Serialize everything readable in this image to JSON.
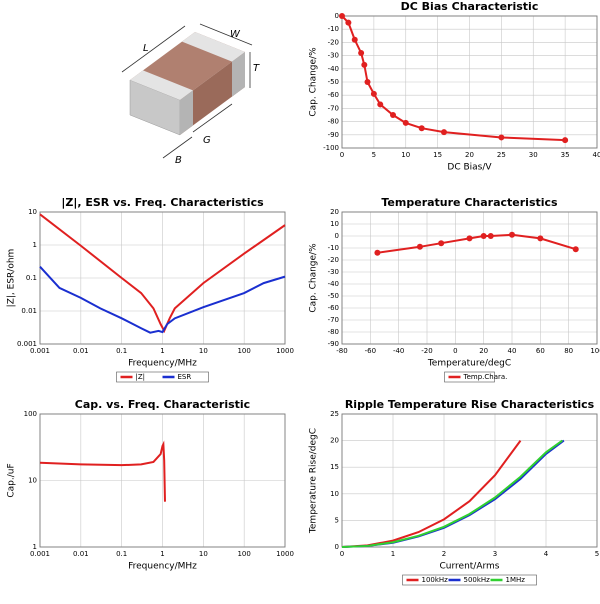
{
  "illustration": {
    "length_label": "L",
    "width_label": "W",
    "thickness_label": "T",
    "band_label": "B",
    "gap_label": "G"
  },
  "chart_data": [
    {
      "type": "line",
      "title": "DC Bias Characteristic",
      "x_label": "DC Bias/V",
      "y_label": "Cap. Change/%",
      "xlim": [
        0,
        40
      ],
      "xticks": [
        0,
        5,
        10,
        15,
        20,
        25,
        30,
        35,
        40
      ],
      "ylim": [
        -100,
        0
      ],
      "yticks": [
        0,
        -10,
        -20,
        -30,
        -40,
        -50,
        -60,
        -70,
        -80,
        -90,
        -100
      ],
      "grid": true,
      "markers": true,
      "series": [
        {
          "color": "#e02020",
          "x": [
            0,
            1,
            2,
            3,
            3.5,
            4,
            5,
            6,
            8,
            10,
            12.5,
            16,
            25,
            35
          ],
          "values": [
            0,
            -5,
            -18,
            -28,
            -37,
            -50,
            -59,
            -67,
            -75,
            -81,
            -85,
            -88,
            -92,
            -94
          ]
        }
      ]
    },
    {
      "type": "line",
      "title": "|Z|, ESR vs. Freq. Characteristics",
      "x_label": "Frequency/MHz",
      "y_label": "|Z|, ESR/ohm",
      "xscale": "log",
      "yscale": "log",
      "xlim": [
        0.001,
        1000
      ],
      "xticks": [
        0.001,
        0.01,
        0.1,
        1,
        10,
        100,
        1000
      ],
      "ylim": [
        0.001,
        10
      ],
      "yticks": [
        0.001,
        0.01,
        0.1,
        1,
        10
      ],
      "grid": true,
      "markers": false,
      "legend": "bottom",
      "series": [
        {
          "name": "|Z|",
          "color": "#e02020",
          "x": [
            0.001,
            0.01,
            0.1,
            0.3,
            0.6,
            0.9,
            1.1,
            1.5,
            2,
            10,
            100,
            1000
          ],
          "values": [
            8.5,
            0.95,
            0.1,
            0.035,
            0.012,
            0.004,
            0.0025,
            0.006,
            0.012,
            0.07,
            0.55,
            4
          ]
        },
        {
          "name": "ESR",
          "color": "#1a2fd0",
          "x": [
            0.001,
            0.003,
            0.01,
            0.03,
            0.1,
            0.3,
            0.5,
            0.8,
            1,
            1.3,
            2,
            10,
            100,
            300,
            1000
          ],
          "values": [
            0.22,
            0.05,
            0.025,
            0.012,
            0.006,
            0.003,
            0.0022,
            0.0025,
            0.0023,
            0.004,
            0.006,
            0.013,
            0.035,
            0.07,
            0.11
          ]
        }
      ]
    },
    {
      "type": "line",
      "title": "Temperature Characteristics",
      "x_label": "Temperature/degC",
      "y_label": "Cap. Change/%",
      "xlim": [
        -80,
        100
      ],
      "xticks": [
        -80,
        -60,
        -40,
        -20,
        0,
        20,
        40,
        60,
        80,
        100
      ],
      "ylim": [
        -90,
        20
      ],
      "yticks": [
        20,
        10,
        0,
        -10,
        -20,
        -30,
        -40,
        -50,
        -60,
        -70,
        -80,
        -90
      ],
      "grid": true,
      "markers": true,
      "legend": "bottom",
      "series": [
        {
          "name": "Temp.Chara.",
          "color": "#e02020",
          "x": [
            -55,
            -25,
            -10,
            10,
            20,
            25,
            40,
            60,
            85
          ],
          "values": [
            -14,
            -9,
            -6,
            -2,
            0,
            0,
            1,
            -2,
            -11
          ]
        }
      ]
    },
    {
      "type": "line",
      "title": "Cap. vs. Freq. Characteristic",
      "x_label": "Frequency/MHz",
      "y_label": "Cap./uF",
      "xscale": "log",
      "yscale": "log",
      "xlim": [
        0.001,
        1000
      ],
      "xticks": [
        0.001,
        0.01,
        0.1,
        1,
        10,
        100,
        1000
      ],
      "ylim": [
        1,
        100
      ],
      "yticks": [
        1,
        10,
        100
      ],
      "grid": true,
      "markers": false,
      "series": [
        {
          "color": "#e02020",
          "x": [
            0.001,
            0.01,
            0.1,
            0.3,
            0.6,
            0.9,
            1.0,
            1.05,
            1.1,
            1.15
          ],
          "values": [
            18.5,
            17.5,
            17,
            17.5,
            19,
            25,
            33,
            35,
            20,
            4.8
          ]
        }
      ]
    },
    {
      "type": "line",
      "title": "Ripple Temperature Rise Characteristics",
      "x_label": "Current/Arms",
      "y_label": "Temperature Rise/degC",
      "xlim": [
        0,
        5
      ],
      "xticks": [
        0,
        1,
        2,
        3,
        4,
        5
      ],
      "ylim": [
        0,
        25
      ],
      "yticks": [
        0,
        5,
        10,
        15,
        20,
        25
      ],
      "grid": true,
      "markers": false,
      "legend": "bottom",
      "series": [
        {
          "name": "100kHz",
          "color": "#e02020",
          "x": [
            0,
            0.5,
            1,
            1.5,
            2,
            2.5,
            3,
            3.5
          ],
          "values": [
            0,
            0.3,
            1.2,
            2.8,
            5.2,
            8.6,
            13.5,
            20
          ]
        },
        {
          "name": "500kHz",
          "color": "#1a2fd0",
          "x": [
            0,
            0.5,
            1,
            1.5,
            2,
            2.5,
            3,
            3.5,
            4,
            4.35
          ],
          "values": [
            0,
            0.2,
            0.8,
            2,
            3.6,
            6,
            9,
            12.8,
            17.5,
            20
          ]
        },
        {
          "name": "1MHz",
          "color": "#30d030",
          "x": [
            0,
            0.5,
            1,
            1.5,
            2,
            2.5,
            3,
            3.5,
            4,
            4.32
          ],
          "values": [
            0,
            0.2,
            0.9,
            2.1,
            3.8,
            6.2,
            9.3,
            13.2,
            17.8,
            20
          ]
        }
      ]
    }
  ]
}
